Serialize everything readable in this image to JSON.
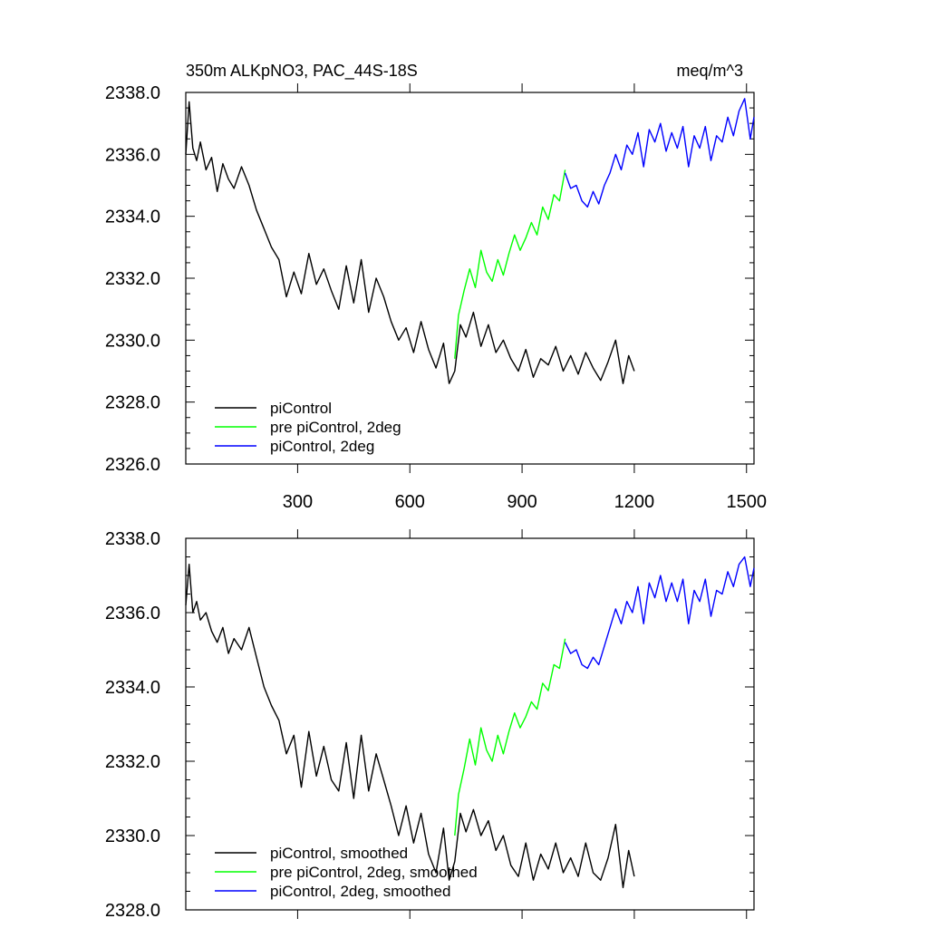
{
  "chart_data": [
    {
      "type": "line",
      "title": "350m ALKpNO3, PAC_44S-18S",
      "units": "meq/m^3",
      "xlim": [
        1,
        1520
      ],
      "ylim": [
        2326.0,
        2338.0
      ],
      "x_tick_labels": [
        "300",
        "600",
        "900",
        "1200",
        "1500"
      ],
      "x_ticks": [
        300,
        600,
        900,
        1200,
        1500
      ],
      "y_tick_labels": [
        "2326.0",
        "2328.0",
        "2330.0",
        "2332.0",
        "2334.0",
        "2336.0",
        "2338.0"
      ],
      "y_ticks": [
        2326,
        2328,
        2330,
        2332,
        2334,
        2336,
        2338
      ],
      "legend_position": "bottom-left",
      "series": [
        {
          "name": "piControl",
          "color": "#000000",
          "x": [
            1,
            10,
            20,
            30,
            40,
            55,
            70,
            85,
            100,
            115,
            130,
            150,
            170,
            190,
            210,
            230,
            250,
            270,
            290,
            310,
            330,
            350,
            370,
            390,
            410,
            430,
            450,
            470,
            490,
            510,
            530,
            550,
            570,
            590,
            610,
            630,
            650,
            670,
            690,
            705,
            720,
            735,
            750,
            770,
            790,
            810,
            830,
            850,
            870,
            890,
            910,
            930,
            950,
            970,
            990,
            1010,
            1030,
            1050,
            1070,
            1090,
            1110,
            1130,
            1150,
            1170,
            1185,
            1200
          ],
          "values": [
            2336.0,
            2337.7,
            2336.2,
            2335.8,
            2336.4,
            2335.5,
            2335.9,
            2334.8,
            2335.7,
            2335.2,
            2334.9,
            2335.6,
            2335.0,
            2334.2,
            2333.6,
            2333.0,
            2332.6,
            2331.4,
            2332.2,
            2331.5,
            2332.8,
            2331.8,
            2332.3,
            2331.6,
            2331.0,
            2332.4,
            2331.2,
            2332.6,
            2330.9,
            2332.0,
            2331.4,
            2330.6,
            2330.0,
            2330.4,
            2329.6,
            2330.6,
            2329.7,
            2329.1,
            2329.9,
            2328.6,
            2329.0,
            2330.5,
            2330.1,
            2330.9,
            2329.8,
            2330.5,
            2329.6,
            2330.0,
            2329.4,
            2329.0,
            2329.7,
            2328.8,
            2329.4,
            2329.2,
            2329.8,
            2329.0,
            2329.5,
            2328.9,
            2329.6,
            2329.1,
            2328.7,
            2329.3,
            2330.0,
            2328.6,
            2329.5,
            2329.0
          ]
        },
        {
          "name": "pre piControl, 2deg",
          "color": "#00ff00",
          "x": [
            720,
            730,
            745,
            760,
            775,
            790,
            805,
            820,
            835,
            850,
            865,
            880,
            895,
            910,
            925,
            940,
            955,
            970,
            985,
            1000,
            1015
          ],
          "values": [
            2329.4,
            2330.8,
            2331.6,
            2332.3,
            2331.7,
            2332.9,
            2332.2,
            2331.9,
            2332.6,
            2332.1,
            2332.8,
            2333.4,
            2332.9,
            2333.3,
            2333.8,
            2333.4,
            2334.3,
            2333.9,
            2334.7,
            2334.5,
            2335.5
          ]
        },
        {
          "name": "piControl, 2deg",
          "color": "#0000ff",
          "x": [
            1015,
            1030,
            1045,
            1060,
            1075,
            1090,
            1105,
            1120,
            1135,
            1150,
            1165,
            1180,
            1195,
            1210,
            1225,
            1240,
            1255,
            1270,
            1285,
            1300,
            1315,
            1330,
            1345,
            1360,
            1375,
            1390,
            1405,
            1420,
            1435,
            1450,
            1465,
            1480,
            1495,
            1510,
            1520
          ],
          "values": [
            2335.4,
            2334.9,
            2335.0,
            2334.5,
            2334.3,
            2334.8,
            2334.4,
            2335.0,
            2335.4,
            2336.0,
            2335.5,
            2336.3,
            2336.0,
            2336.7,
            2335.6,
            2336.8,
            2336.4,
            2337.0,
            2336.1,
            2336.7,
            2336.2,
            2336.9,
            2335.6,
            2336.6,
            2336.2,
            2336.9,
            2335.8,
            2336.6,
            2336.4,
            2337.2,
            2336.6,
            2337.4,
            2337.8,
            2336.5,
            2337.2
          ]
        }
      ]
    },
    {
      "type": "line",
      "title": "",
      "xlim": [
        1,
        1520
      ],
      "ylim": [
        2328.0,
        2338.0
      ],
      "x_ticks": [
        300,
        600,
        900,
        1200,
        1500
      ],
      "y_tick_labels": [
        "2328.0",
        "2330.0",
        "2332.0",
        "2334.0",
        "2336.0",
        "2338.0"
      ],
      "y_ticks": [
        2328,
        2330,
        2332,
        2334,
        2336,
        2338
      ],
      "legend_position": "bottom-left",
      "series": [
        {
          "name": "piControl, smoothed",
          "color": "#000000",
          "x": [
            1,
            10,
            20,
            30,
            40,
            55,
            70,
            85,
            100,
            115,
            130,
            150,
            170,
            190,
            210,
            230,
            250,
            270,
            290,
            310,
            330,
            350,
            370,
            390,
            410,
            430,
            450,
            470,
            490,
            510,
            530,
            550,
            570,
            590,
            610,
            630,
            650,
            670,
            690,
            705,
            720,
            735,
            750,
            770,
            790,
            810,
            830,
            850,
            870,
            890,
            910,
            930,
            950,
            970,
            990,
            1010,
            1030,
            1050,
            1070,
            1090,
            1110,
            1130,
            1150,
            1170,
            1185,
            1200
          ],
          "values": [
            2336.2,
            2337.3,
            2336.0,
            2336.3,
            2335.8,
            2336.0,
            2335.5,
            2335.2,
            2335.6,
            2334.9,
            2335.3,
            2335.0,
            2335.6,
            2334.8,
            2334.0,
            2333.5,
            2333.1,
            2332.2,
            2332.7,
            2331.3,
            2332.8,
            2331.6,
            2332.4,
            2331.5,
            2331.2,
            2332.5,
            2331.0,
            2332.7,
            2331.2,
            2332.2,
            2331.5,
            2330.8,
            2330.0,
            2330.8,
            2329.8,
            2330.6,
            2329.5,
            2329.0,
            2330.2,
            2328.8,
            2329.3,
            2330.6,
            2330.1,
            2330.7,
            2330.0,
            2330.4,
            2329.6,
            2330.0,
            2329.2,
            2328.9,
            2329.8,
            2328.8,
            2329.5,
            2329.1,
            2329.8,
            2329.0,
            2329.4,
            2328.9,
            2329.8,
            2329.0,
            2328.8,
            2329.4,
            2330.3,
            2328.6,
            2329.6,
            2328.9
          ]
        },
        {
          "name": "pre piControl, 2deg, smoothed",
          "color": "#00ff00",
          "x": [
            720,
            730,
            745,
            760,
            775,
            790,
            805,
            820,
            835,
            850,
            865,
            880,
            895,
            910,
            925,
            940,
            955,
            970,
            985,
            1000,
            1015
          ],
          "values": [
            2330.0,
            2331.1,
            2331.8,
            2332.6,
            2331.9,
            2332.9,
            2332.3,
            2332.0,
            2332.7,
            2332.2,
            2332.8,
            2333.3,
            2332.9,
            2333.2,
            2333.6,
            2333.4,
            2334.1,
            2333.9,
            2334.6,
            2334.5,
            2335.3
          ]
        },
        {
          "name": "piControl, 2deg, smoothed",
          "color": "#0000ff",
          "x": [
            1015,
            1030,
            1045,
            1060,
            1075,
            1090,
            1105,
            1120,
            1135,
            1150,
            1165,
            1180,
            1195,
            1210,
            1225,
            1240,
            1255,
            1270,
            1285,
            1300,
            1315,
            1330,
            1345,
            1360,
            1375,
            1390,
            1405,
            1420,
            1435,
            1450,
            1465,
            1480,
            1495,
            1510,
            1520
          ],
          "values": [
            2335.2,
            2334.9,
            2335.0,
            2334.6,
            2334.5,
            2334.8,
            2334.6,
            2335.1,
            2335.6,
            2336.1,
            2335.7,
            2336.3,
            2336.0,
            2336.7,
            2335.7,
            2336.8,
            2336.4,
            2337.0,
            2336.3,
            2336.8,
            2336.3,
            2336.9,
            2335.7,
            2336.6,
            2336.3,
            2336.9,
            2335.9,
            2336.6,
            2336.5,
            2337.1,
            2336.7,
            2337.3,
            2337.5,
            2336.7,
            2337.2
          ]
        }
      ]
    }
  ]
}
